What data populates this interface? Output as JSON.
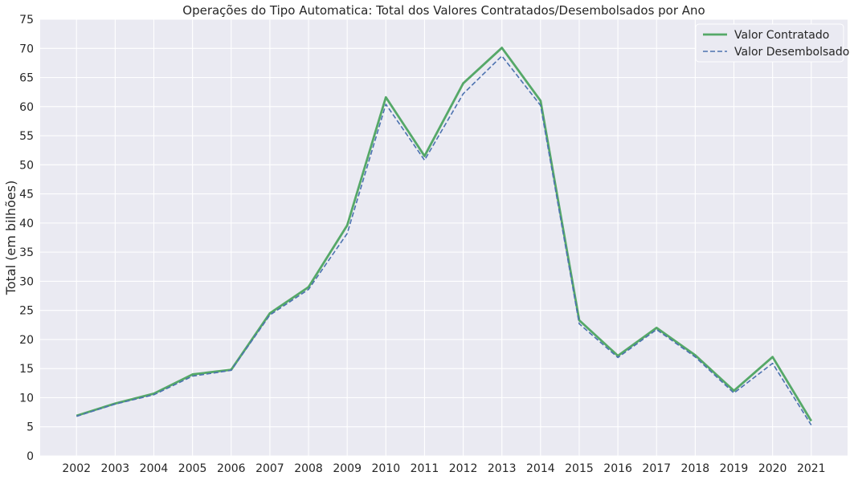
{
  "chart_data": {
    "type": "line",
    "title": "Operações do Tipo Automatica: Total dos Valores Contratados/Desembolsados por Ano",
    "xlabel": "",
    "ylabel": "Total (em bilhões)",
    "x": [
      "2002",
      "2003",
      "2004",
      "2005",
      "2006",
      "2007",
      "2008",
      "2009",
      "2010",
      "2011",
      "2012",
      "2013",
      "2014",
      "2015",
      "2016",
      "2017",
      "2018",
      "2019",
      "2020",
      "2021"
    ],
    "ylim": [
      0,
      75
    ],
    "yticks": [
      0,
      5,
      10,
      15,
      20,
      25,
      30,
      35,
      40,
      45,
      50,
      55,
      60,
      65,
      70,
      75
    ],
    "grid": true,
    "legend_position": "top-right",
    "series": [
      {
        "name": "Valor Contratado",
        "color": "#55a868",
        "style": "solid",
        "values": [
          6.9,
          9.0,
          10.7,
          14.0,
          14.8,
          24.5,
          29.0,
          39.6,
          61.6,
          51.5,
          64.0,
          70.1,
          61.0,
          23.3,
          17.2,
          22.0,
          17.3,
          11.2,
          17.0,
          6.0
        ]
      },
      {
        "name": "Valor Desembolsado",
        "color": "#4c72b0",
        "style": "dashed",
        "values": [
          6.8,
          8.9,
          10.5,
          13.7,
          14.7,
          24.2,
          28.6,
          38.2,
          60.4,
          50.8,
          62.2,
          68.7,
          60.2,
          22.7,
          16.9,
          21.7,
          17.0,
          10.8,
          15.9,
          5.3
        ]
      }
    ],
    "colors": {
      "background": "#eaeaf2",
      "grid": "#ffffff"
    }
  }
}
